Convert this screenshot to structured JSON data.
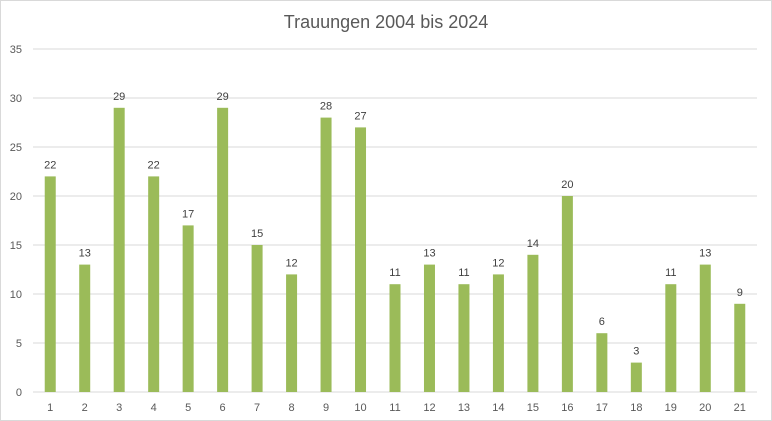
{
  "chart_data": {
    "type": "bar",
    "title": "Trauungen 2004 bis 2024",
    "xlabel": "",
    "ylabel": "",
    "categories": [
      "1",
      "2",
      "3",
      "4",
      "5",
      "6",
      "7",
      "8",
      "9",
      "10",
      "11",
      "12",
      "13",
      "14",
      "15",
      "16",
      "17",
      "18",
      "19",
      "20",
      "21"
    ],
    "values": [
      22,
      13,
      29,
      22,
      17,
      29,
      15,
      12,
      28,
      27,
      11,
      13,
      11,
      12,
      14,
      20,
      6,
      3,
      11,
      13,
      9
    ],
    "ylim": [
      0,
      35
    ],
    "yticks": [
      0,
      5,
      10,
      15,
      20,
      25,
      30,
      35
    ],
    "grid": true,
    "legend": "none",
    "data_labels": true,
    "bar_color": "#9bbb59",
    "gridline_color": "#d9d9d9"
  }
}
